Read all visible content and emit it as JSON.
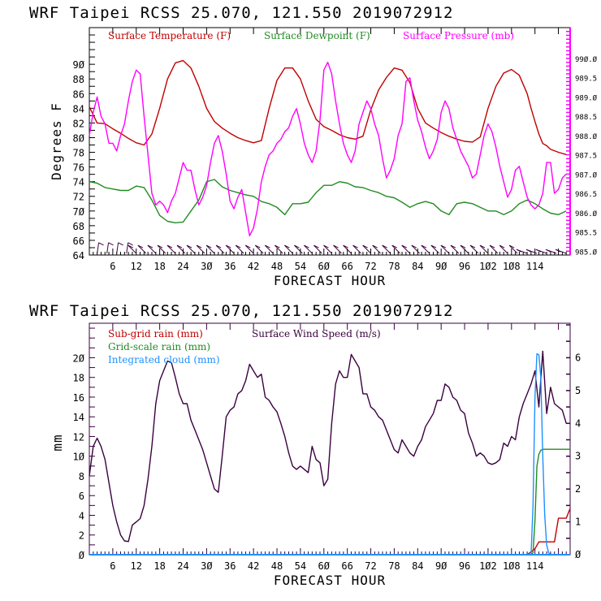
{
  "chart_data": [
    {
      "type": "line",
      "title": "WRF   Taipei RCSS   25.070, 121.550  2019072912",
      "xlabel": "FORECAST HOUR",
      "ylabel": "Degrees F",
      "ylabel_right": "",
      "xlim": [
        0,
        123
      ],
      "ylim": [
        64,
        95
      ],
      "ylim_right": [
        984.9,
        990.8
      ],
      "xticks": [
        6,
        12,
        18,
        24,
        30,
        36,
        42,
        48,
        54,
        60,
        66,
        72,
        78,
        84,
        90,
        96,
        102,
        108,
        114
      ],
      "xtick_labels": [
        "6",
        "12",
        "18",
        "24",
        "3Ø",
        "36",
        "42",
        "48",
        "54",
        "6Ø",
        "66",
        "72",
        "78",
        "84",
        "9Ø",
        "96",
        "1Ø2",
        "1Ø8",
        "114"
      ],
      "yticks": [
        64,
        66,
        68,
        70,
        72,
        74,
        76,
        78,
        80,
        82,
        84,
        86,
        88,
        90
      ],
      "ytick_labels": [
        "64",
        "66",
        "68",
        "7Ø",
        "72",
        "74",
        "76",
        "78",
        "8Ø",
        "82",
        "84",
        "86",
        "88",
        "9Ø"
      ],
      "yticks_right": [
        985.0,
        985.5,
        986.0,
        986.5,
        987.0,
        987.5,
        988.0,
        988.5,
        989.0,
        989.5,
        990.0
      ],
      "ytick_labels_right": [
        "985.Ø",
        "985.5",
        "986.Ø",
        "986.5",
        "987.Ø",
        "987.5",
        "988.Ø",
        "988.5",
        "989.Ø",
        "989.5",
        "99Ø.Ø"
      ],
      "legend": [
        {
          "label": "Surface Temperature (F)",
          "color": "#c00000"
        },
        {
          "label": "Surface Dewpoint (F)",
          "color": "#228b22"
        },
        {
          "label": "Surface Pressure (mb)",
          "color": "#ff00ff"
        }
      ],
      "series": [
        {
          "name": "Surface Temperature (F)",
          "axis": "left",
          "color": "#c00000",
          "x": [
            0,
            2,
            4,
            6,
            8,
            10,
            12,
            14,
            16,
            18,
            20,
            22,
            24,
            26,
            28,
            30,
            32,
            34,
            36,
            38,
            40,
            42,
            44,
            46,
            48,
            50,
            52,
            54,
            56,
            58,
            60,
            62,
            64,
            66,
            68,
            70,
            72,
            74,
            76,
            78,
            80,
            82,
            84,
            86,
            88,
            90,
            92,
            94,
            96,
            98,
            100,
            102,
            104,
            106,
            108,
            110,
            112,
            113,
            114,
            115,
            116,
            117,
            118,
            120,
            122
          ],
          "y": [
            84.2,
            82,
            81.9,
            81.2,
            80.6,
            79.9,
            79.3,
            79,
            80.5,
            84,
            88,
            90.2,
            90.5,
            89.5,
            87,
            84,
            82.2,
            81.3,
            80.6,
            80,
            79.6,
            79.3,
            79.6,
            84,
            87.8,
            89.5,
            89.5,
            88,
            85,
            82.5,
            81.5,
            81,
            80.4,
            80,
            79.8,
            80.2,
            83.8,
            86.5,
            88.2,
            89.5,
            89.2,
            87.5,
            84,
            82,
            81.3,
            80.7,
            80.2,
            79.8,
            79.5,
            79.4,
            80.1,
            84,
            87,
            88.8,
            89.3,
            88.5,
            86,
            84,
            82.2,
            80.5,
            79.2,
            78.9,
            78.4,
            78,
            77.7
          ]
        },
        {
          "name": "Surface Dewpoint (F)",
          "axis": "left",
          "color": "#228b22",
          "x": [
            0,
            2,
            4,
            6,
            8,
            10,
            12,
            14,
            16,
            18,
            20,
            22,
            24,
            26,
            28,
            30,
            32,
            34,
            36,
            38,
            40,
            42,
            44,
            46,
            48,
            50,
            52,
            54,
            56,
            58,
            60,
            62,
            64,
            66,
            68,
            70,
            72,
            74,
            76,
            78,
            80,
            82,
            84,
            86,
            88,
            90,
            92,
            94,
            96,
            98,
            100,
            102,
            104,
            106,
            108,
            110,
            112,
            114,
            116,
            118,
            120,
            122
          ],
          "y": [
            74,
            73.8,
            73.2,
            73,
            72.8,
            72.8,
            73.4,
            73.2,
            71.5,
            69.4,
            68.6,
            68.4,
            68.5,
            70,
            71.5,
            74,
            74.3,
            73.3,
            72.8,
            72.5,
            72.2,
            72,
            71.3,
            71,
            70.5,
            69.5,
            71,
            71,
            71.2,
            72.5,
            73.5,
            73.5,
            74,
            73.8,
            73.3,
            73.2,
            72.8,
            72.5,
            72,
            71.8,
            71.2,
            70.5,
            71,
            71.3,
            71,
            70,
            69.5,
            71,
            71.2,
            71,
            70.5,
            70,
            70,
            69.5,
            70,
            71,
            71.5,
            71,
            70.3,
            69.7,
            69.5,
            70
          ]
        },
        {
          "name": "Surface Pressure (mb)",
          "axis": "right",
          "color": "#ff00ff",
          "x": [
            0,
            1,
            2,
            3,
            4,
            5,
            6,
            7,
            8,
            9,
            10,
            11,
            12,
            13,
            14,
            15,
            16,
            17,
            18,
            19,
            20,
            21,
            22,
            23,
            24,
            25,
            26,
            27,
            28,
            29,
            30,
            31,
            32,
            33,
            34,
            35,
            36,
            37,
            38,
            39,
            40,
            41,
            42,
            43,
            44,
            45,
            46,
            47,
            48,
            49,
            50,
            51,
            52,
            53,
            54,
            55,
            56,
            57,
            58,
            59,
            60,
            61,
            62,
            63,
            64,
            65,
            66,
            67,
            68,
            69,
            70,
            71,
            72,
            73,
            74,
            75,
            76,
            77,
            78,
            79,
            80,
            81,
            82,
            83,
            84,
            85,
            86,
            87,
            88,
            89,
            90,
            91,
            92,
            93,
            94,
            95,
            96,
            97,
            98,
            99,
            100,
            101,
            102,
            103,
            104,
            105,
            106,
            107,
            108,
            109,
            110,
            111,
            112,
            113,
            114,
            115,
            116,
            117,
            118,
            119,
            120,
            121,
            122
          ],
          "y": [
            988,
            988.6,
            989,
            988.5,
            988.3,
            987.8,
            987.8,
            987.6,
            988,
            988.3,
            988.9,
            989.4,
            989.7,
            989.6,
            988.5,
            987.5,
            986.5,
            986.2,
            986.3,
            986.2,
            986,
            986.3,
            986.5,
            986.9,
            987.3,
            987.1,
            987.1,
            986.6,
            986.2,
            986.4,
            986.7,
            987.3,
            987.8,
            988,
            987.6,
            987,
            986.3,
            986.1,
            986.4,
            986.6,
            986,
            985.4,
            985.6,
            986.1,
            986.8,
            987.2,
            987.5,
            987.6,
            987.8,
            987.9,
            988.1,
            988.2,
            988.5,
            988.7,
            988.3,
            987.8,
            987.5,
            987.3,
            987.6,
            988.4,
            989.7,
            989.9,
            989.6,
            988.9,
            988.3,
            987.8,
            987.5,
            987.3,
            987.6,
            988.3,
            988.6,
            988.9,
            988.7,
            988.3,
            988,
            987.4,
            986.9,
            987.1,
            987.4,
            988,
            988.3,
            989.4,
            989.5,
            988.9,
            988.4,
            988.1,
            987.7,
            987.4,
            987.6,
            987.9,
            988.6,
            988.9,
            988.7,
            988.2,
            987.9,
            987.6,
            987.4,
            987.2,
            986.9,
            987,
            987.5,
            988,
            988.3,
            988.1,
            987.7,
            987.2,
            986.8,
            986.4,
            986.6,
            987.1,
            987.2,
            986.8,
            986.4,
            986.2,
            986.1,
            986.2,
            986.5,
            987.3,
            987.3,
            986.5,
            986.6,
            986.9,
            987
          ]
        }
      ],
      "wind_barbs": {
        "label": "wind barbs along bottom axis",
        "color": "#400040"
      },
      "grid": false
    },
    {
      "type": "line",
      "title": "WRF   Taipei RCSS   25.070, 121.550  2019072912",
      "xlabel": "FORECAST HOUR",
      "ylabel": "mm",
      "xlim": [
        0,
        123
      ],
      "ylim": [
        0,
        23.5
      ],
      "ylim_right": [
        0,
        7.05
      ],
      "xticks": [
        6,
        12,
        18,
        24,
        30,
        36,
        42,
        48,
        54,
        60,
        66,
        72,
        78,
        84,
        90,
        96,
        102,
        108,
        114
      ],
      "xtick_labels": [
        "6",
        "12",
        "18",
        "24",
        "3Ø",
        "36",
        "42",
        "48",
        "54",
        "6Ø",
        "66",
        "72",
        "78",
        "84",
        "9Ø",
        "96",
        "1Ø2",
        "1Ø8",
        "114"
      ],
      "yticks": [
        0,
        2,
        4,
        6,
        8,
        10,
        12,
        14,
        16,
        18,
        20
      ],
      "ytick_labels": [
        "Ø",
        "2",
        "4",
        "6",
        "8",
        "1Ø",
        "12",
        "14",
        "16",
        "18",
        "2Ø"
      ],
      "yticks_right": [
        0,
        1,
        2,
        3,
        4,
        5,
        6
      ],
      "ytick_labels_right": [
        "Ø",
        "1",
        "2",
        "3",
        "4",
        "5",
        "6"
      ],
      "legend": [
        {
          "label": "Sub-grid rain (mm)",
          "color": "#c00000"
        },
        {
          "label": "Grid-scale rain (mm)",
          "color": "#228b22"
        },
        {
          "label": "Integrated cloud (mm)",
          "color": "#1e90ff"
        },
        {
          "label": "Surface Wind Speed (m/s)",
          "color": "#3a0040"
        }
      ],
      "series": [
        {
          "name": "Surface Wind Speed (m/s)",
          "axis": "right",
          "color": "#3a0040",
          "x": [
            0,
            1,
            2,
            3,
            4,
            5,
            6,
            7,
            8,
            9,
            10,
            11,
            12,
            13,
            14,
            15,
            16,
            17,
            18,
            19,
            20,
            21,
            22,
            23,
            24,
            25,
            26,
            27,
            28,
            29,
            30,
            31,
            32,
            33,
            34,
            35,
            36,
            37,
            38,
            39,
            40,
            41,
            42,
            43,
            44,
            45,
            46,
            47,
            48,
            49,
            50,
            51,
            52,
            53,
            54,
            55,
            56,
            57,
            58,
            59,
            60,
            61,
            62,
            63,
            64,
            65,
            66,
            67,
            68,
            69,
            70,
            71,
            72,
            73,
            74,
            75,
            76,
            77,
            78,
            79,
            80,
            81,
            82,
            83,
            84,
            85,
            86,
            87,
            88,
            89,
            90,
            91,
            92,
            93,
            94,
            95,
            96,
            97,
            98,
            99,
            100,
            101,
            102,
            103,
            104,
            105,
            106,
            107,
            108,
            109,
            110,
            111,
            112,
            113,
            114,
            115,
            116,
            117,
            118,
            119,
            120,
            121,
            122
          ],
          "y": [
            2.4,
            3.3,
            3.55,
            3.3,
            2.9,
            2.2,
            1.5,
            1,
            0.6,
            0.42,
            0.4,
            0.9,
            1.0,
            1.1,
            1.5,
            2.3,
            3.3,
            4.6,
            5.3,
            5.6,
            5.9,
            5.85,
            5.4,
            4.9,
            4.6,
            4.6,
            4.1,
            3.8,
            3.5,
            3.2,
            2.8,
            2.4,
            2.0,
            1.9,
            3.0,
            4.2,
            4.4,
            4.5,
            4.9,
            5.0,
            5.3,
            5.8,
            5.6,
            5.4,
            5.5,
            4.8,
            4.7,
            4.5,
            4.35,
            4.0,
            3.6,
            3.1,
            2.7,
            2.6,
            2.7,
            2.6,
            2.5,
            3.3,
            2.9,
            2.8,
            2.1,
            2.3,
            4.0,
            5.2,
            5.6,
            5.4,
            5.4,
            6.1,
            5.9,
            5.7,
            4.9,
            4.9,
            4.5,
            4.4,
            4.2,
            4.1,
            3.8,
            3.5,
            3.2,
            3.1,
            3.5,
            3.3,
            3.1,
            3.0,
            3.3,
            3.5,
            3.9,
            4.1,
            4.3,
            4.7,
            4.7,
            5.2,
            5.1,
            4.8,
            4.7,
            4.4,
            4.3,
            3.7,
            3.4,
            3.0,
            3.1,
            3.0,
            2.8,
            2.75,
            2.8,
            2.9,
            3.4,
            3.3,
            3.6,
            3.5,
            4.2,
            4.6,
            4.9,
            5.2,
            5.6,
            4.5,
            6.2,
            4.3,
            5.1,
            4.6,
            4.5,
            4.4,
            4.0
          ]
        },
        {
          "name": "Sub-grid rain (mm)",
          "axis": "left",
          "color": "#c00000",
          "x": [
            0,
            112,
            113,
            114,
            115,
            116,
            117,
            118,
            119,
            120,
            121,
            122,
            123
          ],
          "y": [
            0,
            0,
            0.3,
            0.6,
            1.3,
            1.3,
            1.3,
            1.3,
            1.3,
            3.7,
            3.7,
            3.7,
            4.7
          ]
        },
        {
          "name": "Grid-scale rain (mm)",
          "axis": "left",
          "color": "#228b22",
          "x": [
            0,
            113,
            113.5,
            114,
            114.5,
            115,
            115.5,
            116,
            117,
            118,
            120,
            123
          ],
          "y": [
            0,
            0,
            0.2,
            3.5,
            9.0,
            10.2,
            10.6,
            10.7,
            10.7,
            10.7,
            10.7,
            10.7
          ]
        },
        {
          "name": "Integrated cloud (mm)",
          "axis": "left",
          "color": "#1e90ff",
          "x": [
            0,
            113,
            113.5,
            114,
            114.5,
            115,
            115.5,
            116,
            116.5,
            117,
            117.5,
            118,
            119,
            120,
            123
          ],
          "y": [
            0,
            0,
            5,
            16,
            20.4,
            20.3,
            18,
            10,
            4,
            1,
            0.2,
            0,
            0,
            0,
            0
          ]
        }
      ],
      "grid": false
    }
  ]
}
